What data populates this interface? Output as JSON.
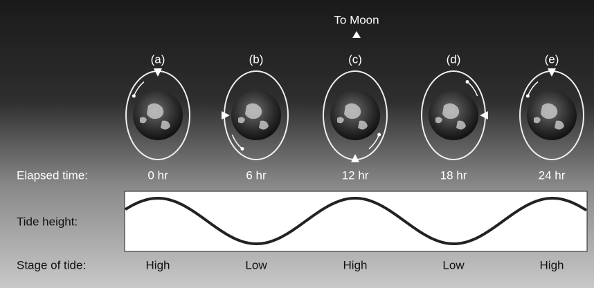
{
  "header": {
    "title": "To Moon"
  },
  "rows": {
    "elapsed_time": "Elapsed  time:",
    "tide_height": "Tide height:",
    "stage_of_tide": "Stage of tide:"
  },
  "panels": [
    {
      "label": "(a)",
      "time": "0 hr",
      "stage": "High"
    },
    {
      "label": "(b)",
      "time": "6 hr",
      "stage": "Low"
    },
    {
      "label": "(c)",
      "time": "12 hr",
      "stage": "High"
    },
    {
      "label": "(d)",
      "time": "18 hr",
      "stage": "Low"
    },
    {
      "label": "(e)",
      "time": "24 hr",
      "stage": "High"
    }
  ]
}
